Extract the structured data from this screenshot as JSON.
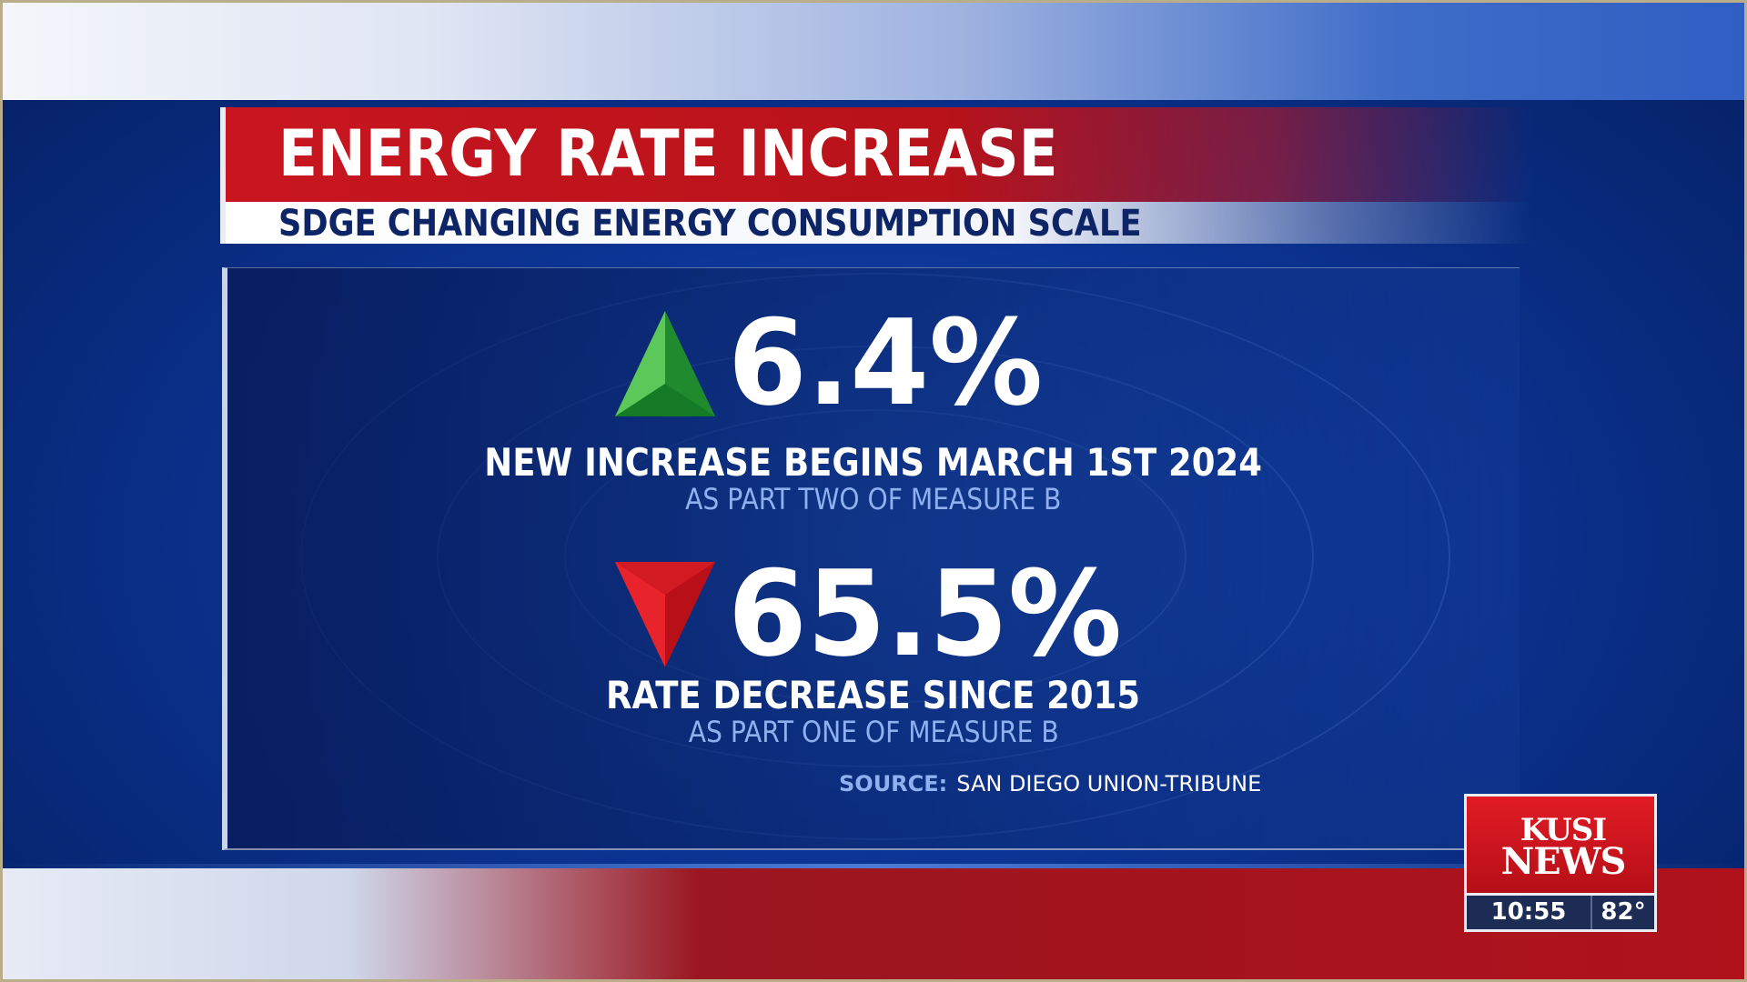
{
  "headline": {
    "title": "ENERGY RATE INCREASE",
    "subtitle": "SDGE CHANGING ENERGY CONSUMPTION SCALE"
  },
  "stats": [
    {
      "direction": "up",
      "icon": "green-up-triangle-icon",
      "value": "6.4%",
      "caption": "NEW INCREASE BEGINS MARCH 1ST 2024",
      "note": "AS PART TWO OF MEASURE B"
    },
    {
      "direction": "down",
      "icon": "red-down-triangle-icon",
      "value": "65.5%",
      "caption": "RATE DECREASE SINCE 2015",
      "note": "AS PART ONE OF MEASURE B"
    }
  ],
  "source": {
    "label": "SOURCE:",
    "text": "SAN DIEGO UNION-TRIBUNE"
  },
  "station_bug": {
    "logo_line1": "KUSI",
    "logo_line2": "NEWS",
    "time": "10:55",
    "temperature": "82°"
  },
  "colors": {
    "title_red": "#c81620",
    "panel_blue": "#0c2c78",
    "accent_light_blue": "#8fb1ee",
    "up_green": "#2e9e3a",
    "down_red": "#d4121c"
  }
}
